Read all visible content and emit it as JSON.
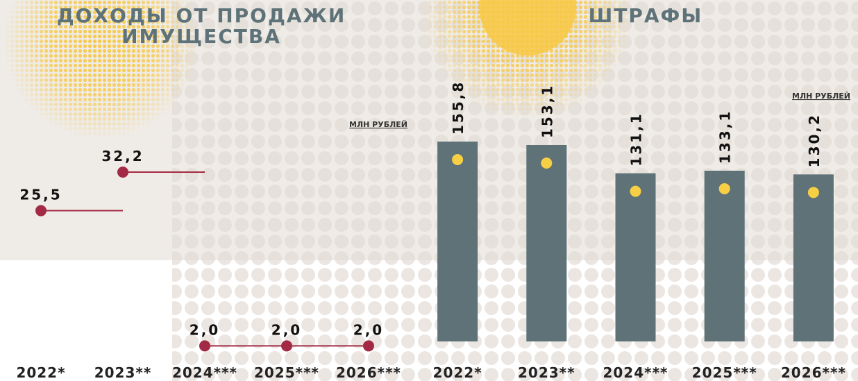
{
  "chart_data": [
    {
      "type": "line",
      "title": [
        "ДОХОДЫ ОТ ПРОДАЖИ",
        "ИМУЩЕСТВА"
      ],
      "unit": "МЛН РУБЛЕЙ",
      "categories": [
        "2022*",
        "2023**",
        "2024***",
        "2025***",
        "2026***"
      ],
      "values": [
        25.5,
        32.2,
        2.0,
        2.0,
        2.0
      ],
      "value_labels": [
        "25,5",
        "32,2",
        "2,0",
        "2,0",
        "2,0"
      ],
      "color": "#a32a44"
    },
    {
      "type": "bar",
      "title": [
        "ШТРАФЫ"
      ],
      "unit": "МЛН РУБЛЕЙ",
      "categories": [
        "2022*",
        "2023**",
        "2024***",
        "2025***",
        "2026***"
      ],
      "values": [
        155.8,
        153.1,
        131.1,
        133.1,
        130.2
      ],
      "value_labels": [
        "155,8",
        "153,1",
        "131,1",
        "133,1",
        "130,2"
      ],
      "color": "#5e7278"
    }
  ]
}
